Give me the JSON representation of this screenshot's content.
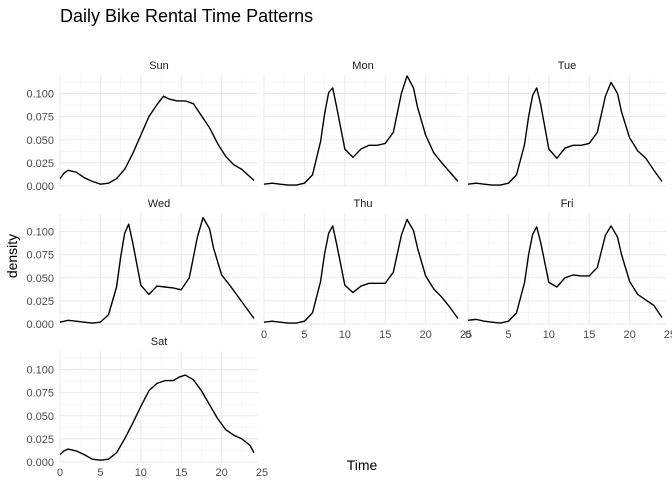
{
  "chart_data": {
    "type": "line",
    "title": "Daily Bike Rental Time Patterns",
    "xlabel": "Time",
    "ylabel": "density",
    "xlim": [
      0,
      24.5
    ],
    "ylim": [
      0,
      0.12
    ],
    "x_ticks": [
      "0",
      "5",
      "10",
      "15",
      "20",
      "25"
    ],
    "y_ticks": [
      "0.000",
      "0.025",
      "0.050",
      "0.075",
      "0.100"
    ],
    "grid": true,
    "facets": [
      {
        "name": "Sun",
        "x": [
          0,
          0.5,
          1,
          2,
          3,
          4,
          5,
          6,
          7,
          8,
          9,
          10,
          11,
          12,
          12.8,
          13.5,
          14.5,
          15.5,
          16.5,
          17.5,
          18.5,
          19.5,
          20.5,
          21.5,
          22.5,
          23.5,
          24
        ],
        "y": [
          0.008,
          0.014,
          0.017,
          0.015,
          0.009,
          0.005,
          0.002,
          0.003,
          0.008,
          0.018,
          0.035,
          0.055,
          0.075,
          0.088,
          0.097,
          0.094,
          0.092,
          0.092,
          0.089,
          0.076,
          0.063,
          0.046,
          0.032,
          0.023,
          0.018,
          0.01,
          0.006
        ]
      },
      {
        "name": "Mon",
        "x": [
          0,
          1,
          2,
          3,
          4,
          5,
          6,
          7,
          7.5,
          8,
          8.5,
          9,
          10,
          11,
          12,
          13,
          14,
          15,
          16,
          17,
          17.7,
          18.5,
          19,
          20,
          21,
          22,
          23,
          24
        ],
        "y": [
          0.002,
          0.003,
          0.002,
          0.001,
          0.001,
          0.003,
          0.012,
          0.048,
          0.078,
          0.101,
          0.106,
          0.085,
          0.04,
          0.031,
          0.04,
          0.044,
          0.044,
          0.046,
          0.058,
          0.1,
          0.119,
          0.106,
          0.085,
          0.055,
          0.036,
          0.025,
          0.015,
          0.005
        ]
      },
      {
        "name": "Tue",
        "x": [
          0,
          1,
          2,
          3,
          4,
          5,
          6,
          7,
          7.5,
          8,
          8.5,
          9,
          10,
          11,
          12,
          13,
          14,
          15,
          16,
          17,
          17.7,
          18.5,
          19,
          20,
          21,
          22,
          23,
          24
        ],
        "y": [
          0.002,
          0.003,
          0.002,
          0.001,
          0.001,
          0.003,
          0.012,
          0.045,
          0.075,
          0.098,
          0.106,
          0.088,
          0.04,
          0.03,
          0.041,
          0.044,
          0.044,
          0.046,
          0.058,
          0.097,
          0.112,
          0.1,
          0.08,
          0.052,
          0.038,
          0.03,
          0.017,
          0.005
        ]
      },
      {
        "name": "Wed",
        "x": [
          0,
          1,
          2,
          3,
          4,
          5,
          6,
          7,
          7.5,
          8,
          8.5,
          9,
          10,
          11,
          12,
          13,
          14,
          15,
          16,
          17,
          17.7,
          18.5,
          19,
          20,
          21,
          22,
          23,
          24
        ],
        "y": [
          0.002,
          0.004,
          0.003,
          0.002,
          0.001,
          0.002,
          0.01,
          0.04,
          0.072,
          0.098,
          0.108,
          0.088,
          0.042,
          0.032,
          0.041,
          0.04,
          0.039,
          0.037,
          0.05,
          0.094,
          0.115,
          0.103,
          0.082,
          0.053,
          0.042,
          0.03,
          0.018,
          0.006
        ]
      },
      {
        "name": "Thu",
        "x": [
          0,
          1,
          2,
          3,
          4,
          5,
          6,
          7,
          7.5,
          8,
          8.5,
          9,
          10,
          11,
          12,
          13,
          14,
          15,
          16,
          17,
          17.7,
          18.5,
          19,
          20,
          21,
          22,
          23,
          24
        ],
        "y": [
          0.002,
          0.003,
          0.002,
          0.001,
          0.001,
          0.003,
          0.012,
          0.046,
          0.076,
          0.098,
          0.106,
          0.086,
          0.042,
          0.034,
          0.041,
          0.044,
          0.044,
          0.044,
          0.056,
          0.096,
          0.113,
          0.101,
          0.082,
          0.052,
          0.038,
          0.029,
          0.018,
          0.006
        ]
      },
      {
        "name": "Fri",
        "x": [
          0,
          1,
          2,
          3,
          4,
          5,
          6,
          7,
          7.5,
          8,
          8.5,
          9,
          10,
          11,
          12,
          13,
          14,
          15,
          16,
          17,
          17.7,
          18.5,
          19,
          20,
          21,
          22,
          23,
          24
        ],
        "y": [
          0.004,
          0.005,
          0.003,
          0.002,
          0.001,
          0.003,
          0.012,
          0.045,
          0.075,
          0.097,
          0.105,
          0.088,
          0.045,
          0.04,
          0.05,
          0.053,
          0.052,
          0.052,
          0.061,
          0.096,
          0.106,
          0.094,
          0.075,
          0.046,
          0.032,
          0.026,
          0.02,
          0.007
        ]
      },
      {
        "name": "Sat",
        "x": [
          0,
          0.5,
          1,
          2,
          3,
          4,
          5,
          6,
          7,
          8,
          9,
          10,
          11,
          12,
          13,
          14,
          14.8,
          15.5,
          16.5,
          17.5,
          18.5,
          19.5,
          20.5,
          21.5,
          22.5,
          23.5,
          24
        ],
        "y": [
          0.008,
          0.012,
          0.014,
          0.012,
          0.008,
          0.003,
          0.002,
          0.003,
          0.01,
          0.025,
          0.042,
          0.06,
          0.077,
          0.085,
          0.088,
          0.088,
          0.092,
          0.094,
          0.089,
          0.077,
          0.062,
          0.047,
          0.035,
          0.029,
          0.025,
          0.018,
          0.01
        ]
      }
    ]
  }
}
